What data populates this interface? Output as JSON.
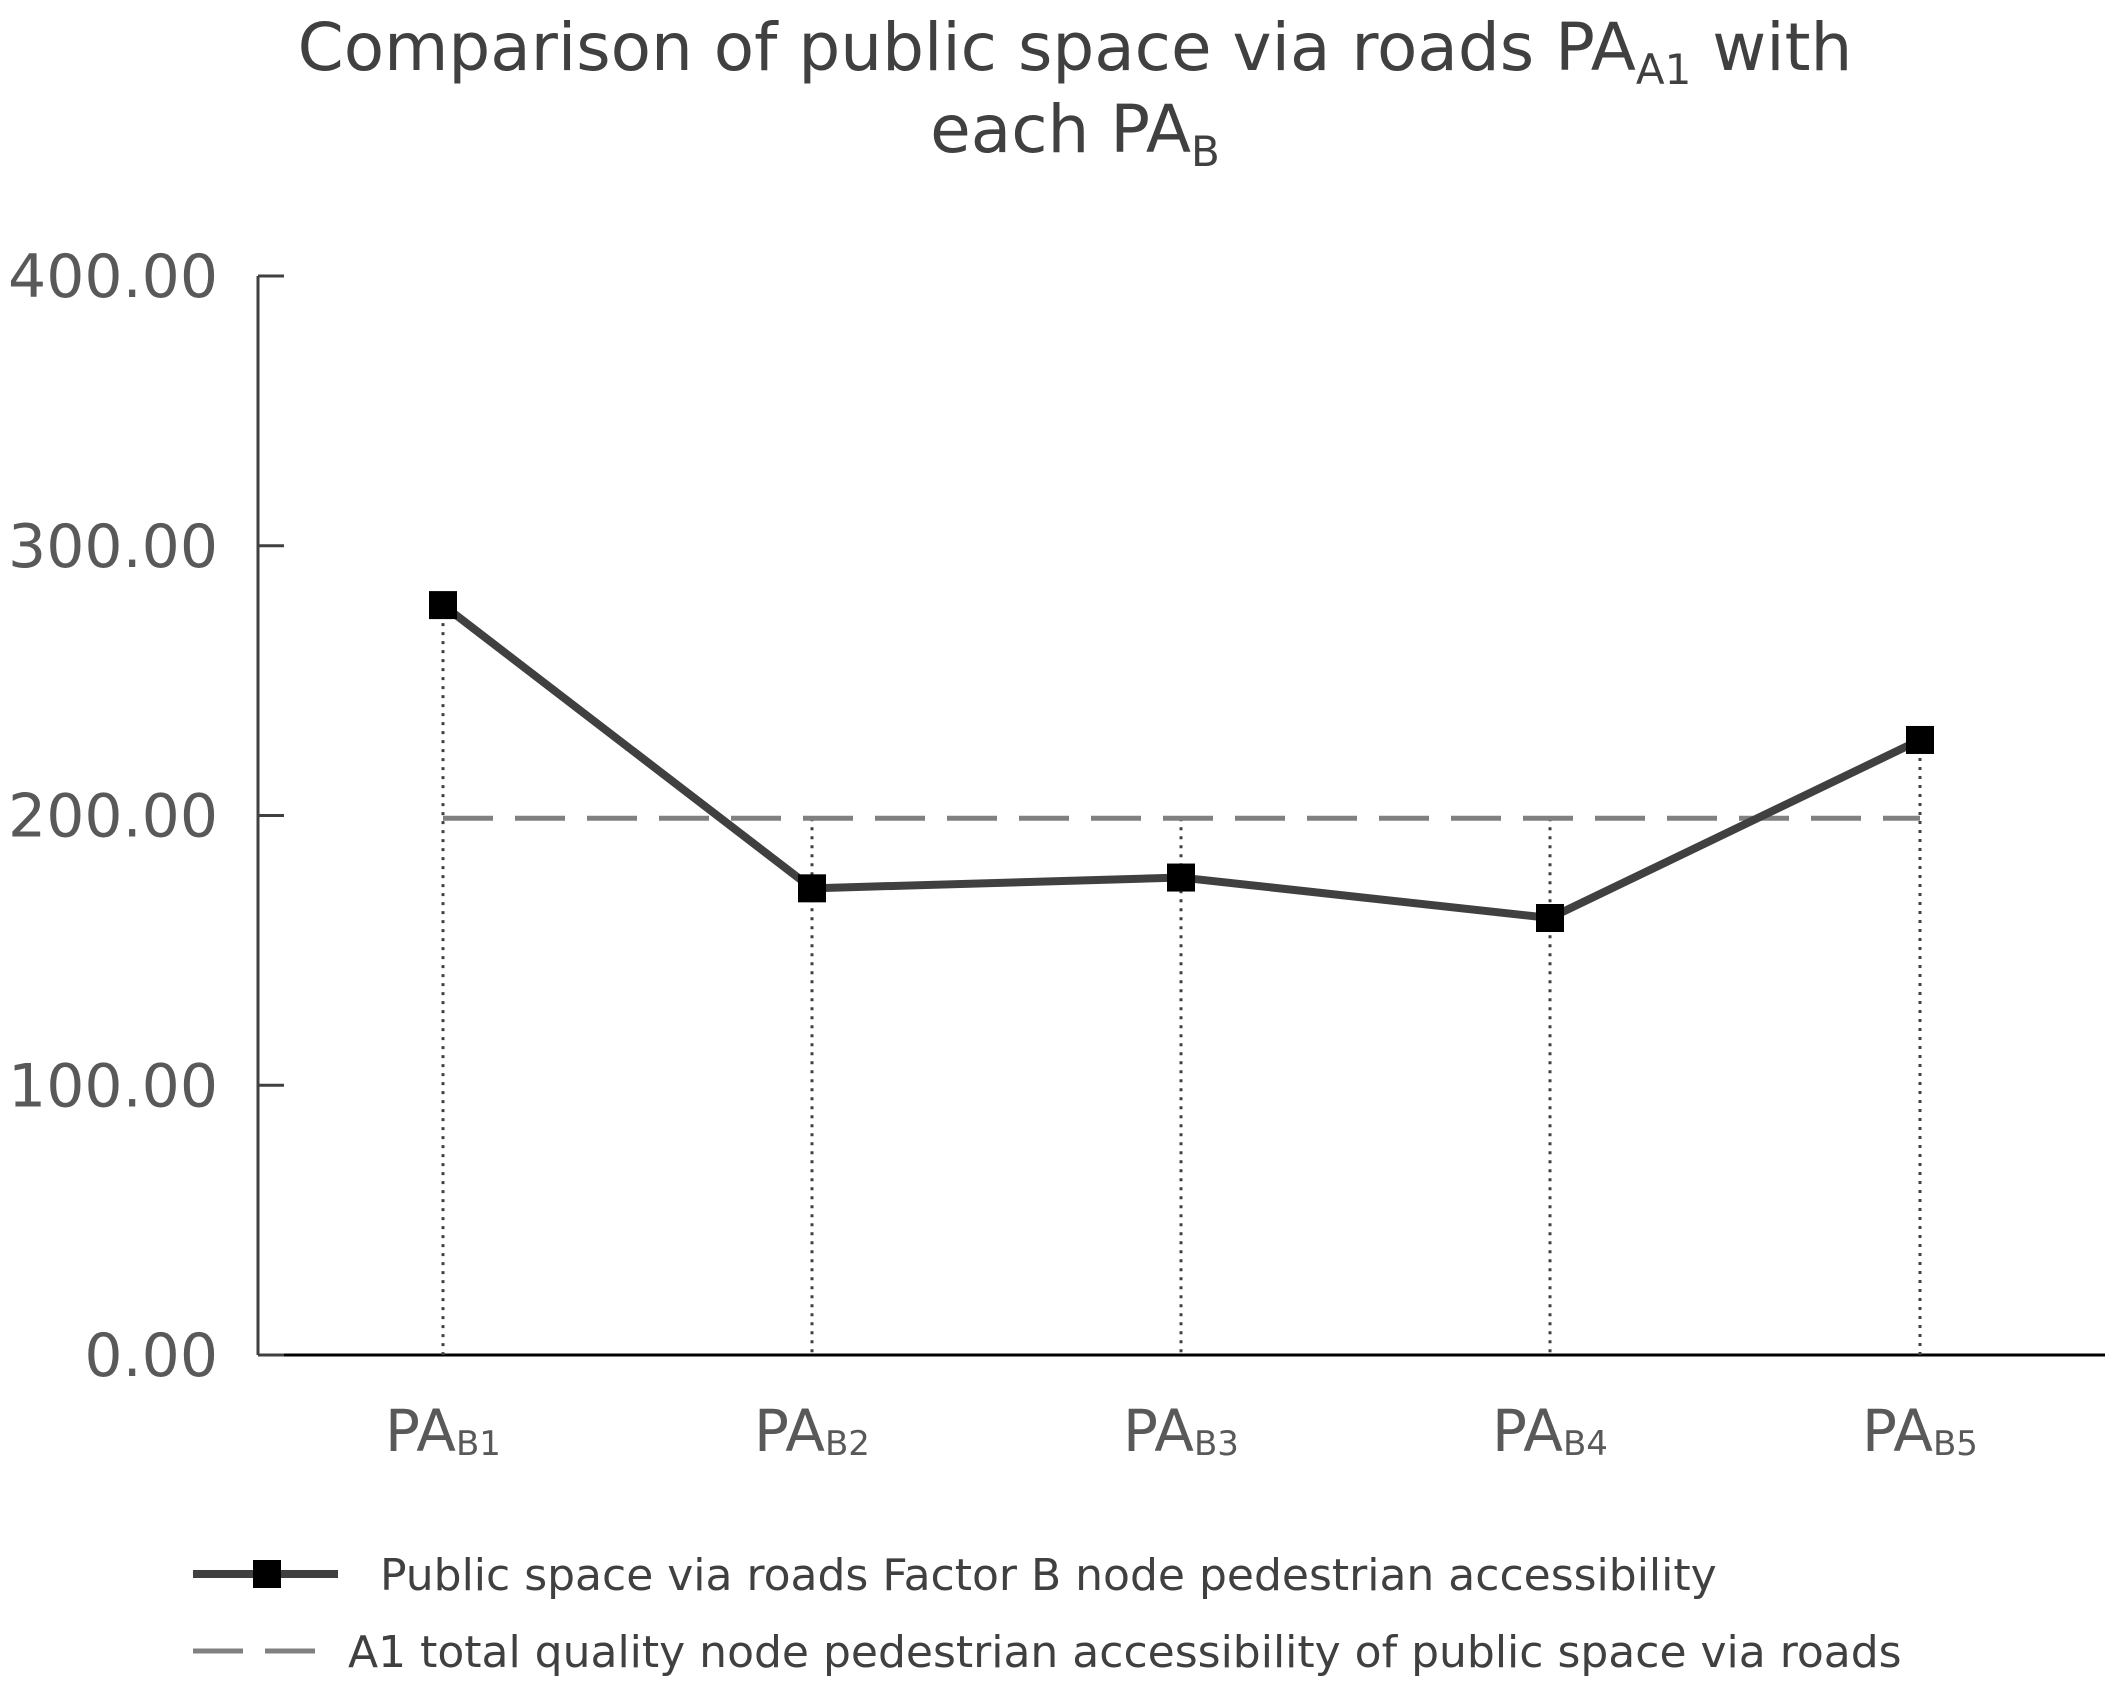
{
  "chart_data": {
    "type": "line",
    "title": {
      "line1": "Comparison of public space via roads PA",
      "line1_subscript": "A1",
      "line1_suffix": " with",
      "line2": "each PA",
      "line2_subscript": "B"
    },
    "xlabel": "",
    "ylabel": "",
    "ylim": [
      0,
      400
    ],
    "yticks": [
      "0.00",
      "100.00",
      "200.00",
      "300.00",
      "400.00"
    ],
    "yticks_values": [
      0,
      100,
      200,
      300,
      400
    ],
    "categories": [
      {
        "main": "PA",
        "sub": "B1"
      },
      {
        "main": "PA",
        "sub": "B2"
      },
      {
        "main": "PA",
        "sub": "B3"
      },
      {
        "main": "PA",
        "sub": "B4"
      },
      {
        "main": "PA",
        "sub": "B5"
      }
    ],
    "grid": false,
    "legend_position": "bottom",
    "series": [
      {
        "name": "Public space via roads Factor B node pedestrian accessibility",
        "style": "solid-square-markers",
        "color": "#404040",
        "values": [
          278,
          173,
          177,
          162,
          228
        ]
      },
      {
        "name": "A1 total quality node pedestrian accessibility of public space via roads",
        "style": "dashed",
        "color": "#808080",
        "values": [
          199,
          199,
          199,
          199,
          199
        ]
      }
    ]
  }
}
